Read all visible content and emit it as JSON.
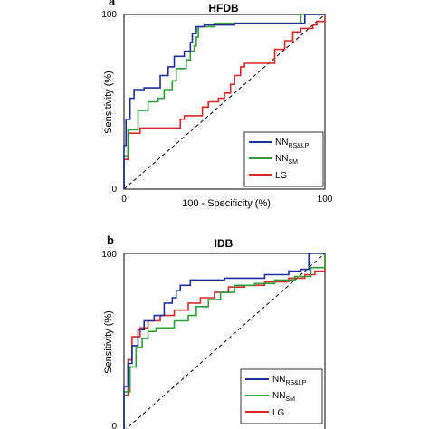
{
  "chart_data": [
    {
      "type": "line",
      "panel_label": "a",
      "title": "HFDB",
      "xlabel": "100 - Specificity (%)",
      "ylabel": "Sensitivity (%)",
      "xlim": [
        0,
        100
      ],
      "ylim": [
        0,
        100
      ],
      "x_ticks": [
        "0",
        "100"
      ],
      "y_ticks": [
        "0",
        "100"
      ],
      "legend_placement": "bottom-right",
      "reference_line": [
        [
          0,
          0
        ],
        [
          100,
          100
        ]
      ],
      "series": [
        {
          "name": "NN",
          "name_sub": "RS&LP",
          "color": "#1f2f9a",
          "points": [
            [
              0,
              0
            ],
            [
              0,
              25
            ],
            [
              1,
              25
            ],
            [
              1,
              40
            ],
            [
              3,
              40
            ],
            [
              3,
              52
            ],
            [
              5,
              52
            ],
            [
              5,
              57
            ],
            [
              10,
              57
            ],
            [
              10,
              58
            ],
            [
              18,
              58
            ],
            [
              18,
              65
            ],
            [
              22,
              65
            ],
            [
              22,
              70
            ],
            [
              25,
              70
            ],
            [
              25,
              76
            ],
            [
              30,
              76
            ],
            [
              30,
              79
            ],
            [
              33,
              79
            ],
            [
              33,
              84
            ],
            [
              34,
              84
            ],
            [
              34,
              89
            ],
            [
              36,
              89
            ],
            [
              36,
              93
            ],
            [
              40,
              93
            ],
            [
              40,
              94
            ],
            [
              55,
              94
            ],
            [
              55,
              95
            ],
            [
              90,
              95
            ],
            [
              90,
              100
            ],
            [
              100,
              100
            ]
          ]
        },
        {
          "name": "NN",
          "name_sub": "SM",
          "color": "#2e9e3a",
          "points": [
            [
              0,
              0
            ],
            [
              0,
              19
            ],
            [
              2,
              19
            ],
            [
              2,
              34
            ],
            [
              7,
              34
            ],
            [
              7,
              45
            ],
            [
              12,
              45
            ],
            [
              12,
              50
            ],
            [
              17,
              50
            ],
            [
              17,
              52
            ],
            [
              20,
              52
            ],
            [
              20,
              57
            ],
            [
              24,
              57
            ],
            [
              24,
              62
            ],
            [
              26,
              62
            ],
            [
              26,
              69
            ],
            [
              31,
              69
            ],
            [
              31,
              74
            ],
            [
              33,
              74
            ],
            [
              33,
              79
            ],
            [
              35,
              79
            ],
            [
              35,
              82
            ],
            [
              36,
              82
            ],
            [
              36,
              87
            ],
            [
              37,
              87
            ],
            [
              37,
              93
            ],
            [
              45,
              93
            ],
            [
              45,
              95
            ],
            [
              88,
              95
            ],
            [
              88,
              100
            ],
            [
              100,
              100
            ]
          ]
        },
        {
          "name": "LG",
          "name_sub": "",
          "color": "#d42a2a",
          "points": [
            [
              0,
              0
            ],
            [
              0,
              17
            ],
            [
              2,
              17
            ],
            [
              2,
              32
            ],
            [
              8,
              32
            ],
            [
              8,
              35
            ],
            [
              28,
              35
            ],
            [
              28,
              40
            ],
            [
              30,
              40
            ],
            [
              30,
              42
            ],
            [
              39,
              42
            ],
            [
              39,
              47
            ],
            [
              42,
              47
            ],
            [
              42,
              50
            ],
            [
              47,
              50
            ],
            [
              47,
              52
            ],
            [
              50,
              52
            ],
            [
              50,
              55
            ],
            [
              53,
              55
            ],
            [
              53,
              60
            ],
            [
              55,
              60
            ],
            [
              55,
              65
            ],
            [
              58,
              65
            ],
            [
              58,
              70
            ],
            [
              60,
              70
            ],
            [
              60,
              72
            ],
            [
              75,
              72
            ],
            [
              75,
              80
            ],
            [
              80,
              80
            ],
            [
              80,
              85
            ],
            [
              84,
              85
            ],
            [
              84,
              90
            ],
            [
              88,
              90
            ],
            [
              88,
              92
            ],
            [
              94,
              92
            ],
            [
              94,
              94
            ],
            [
              96,
              94
            ],
            [
              96,
              96
            ],
            [
              100,
              96
            ],
            [
              100,
              100
            ]
          ]
        }
      ]
    },
    {
      "type": "line",
      "panel_label": "b",
      "title": "IDB",
      "xlabel": "",
      "ylabel": "Sensitivity (%)",
      "xlim": [
        0,
        100
      ],
      "ylim": [
        0,
        100
      ],
      "x_ticks": [],
      "y_ticks": [
        "0",
        "100"
      ],
      "legend_placement": "bottom-right",
      "reference_line": [
        [
          0,
          0
        ],
        [
          100,
          100
        ]
      ],
      "series": [
        {
          "name": "NN",
          "name_sub": "RS&LP",
          "color": "#1f2f9a",
          "points": [
            [
              0,
              0
            ],
            [
              0,
              25
            ],
            [
              2,
              25
            ],
            [
              2,
              38
            ],
            [
              4,
              38
            ],
            [
              4,
              48
            ],
            [
              7,
              48
            ],
            [
              7,
              57
            ],
            [
              10,
              57
            ],
            [
              10,
              62
            ],
            [
              15,
              62
            ],
            [
              15,
              65
            ],
            [
              20,
              65
            ],
            [
              20,
              72
            ],
            [
              24,
              72
            ],
            [
              24,
              75
            ],
            [
              26,
              75
            ],
            [
              26,
              79
            ],
            [
              28,
              79
            ],
            [
              28,
              82
            ],
            [
              33,
              82
            ],
            [
              33,
              85
            ],
            [
              50,
              85
            ],
            [
              50,
              86
            ],
            [
              70,
              86
            ],
            [
              70,
              88
            ],
            [
              82,
              88
            ],
            [
              82,
              90
            ],
            [
              88,
              90
            ],
            [
              88,
              91
            ],
            [
              92,
              91
            ],
            [
              92,
              100
            ],
            [
              100,
              100
            ]
          ]
        },
        {
          "name": "NN",
          "name_sub": "SM",
          "color": "#2e9e3a",
          "points": [
            [
              0,
              0
            ],
            [
              0,
              22
            ],
            [
              3,
              22
            ],
            [
              3,
              36
            ],
            [
              6,
              36
            ],
            [
              6,
              47
            ],
            [
              9,
              47
            ],
            [
              9,
              52
            ],
            [
              12,
              52
            ],
            [
              12,
              56
            ],
            [
              16,
              56
            ],
            [
              16,
              58
            ],
            [
              25,
              58
            ],
            [
              25,
              62
            ],
            [
              32,
              62
            ],
            [
              32,
              65
            ],
            [
              36,
              65
            ],
            [
              36,
              70
            ],
            [
              42,
              70
            ],
            [
              42,
              74
            ],
            [
              48,
              74
            ],
            [
              48,
              78
            ],
            [
              55,
              78
            ],
            [
              55,
              82
            ],
            [
              65,
              82
            ],
            [
              65,
              83
            ],
            [
              75,
              83
            ],
            [
              75,
              85
            ],
            [
              85,
              85
            ],
            [
              85,
              87
            ],
            [
              93,
              87
            ],
            [
              93,
              92
            ],
            [
              100,
              92
            ],
            [
              100,
              100
            ]
          ]
        },
        {
          "name": "LG",
          "name_sub": "",
          "color": "#d42a2a",
          "points": [
            [
              0,
              0
            ],
            [
              0,
              20
            ],
            [
              2,
              20
            ],
            [
              2,
              40
            ],
            [
              4,
              40
            ],
            [
              4,
              53
            ],
            [
              8,
              53
            ],
            [
              8,
              58
            ],
            [
              12,
              58
            ],
            [
              12,
              62
            ],
            [
              18,
              62
            ],
            [
              18,
              65
            ],
            [
              25,
              65
            ],
            [
              25,
              68
            ],
            [
              32,
              68
            ],
            [
              32,
              72
            ],
            [
              38,
              72
            ],
            [
              38,
              75
            ],
            [
              45,
              75
            ],
            [
              45,
              78
            ],
            [
              52,
              78
            ],
            [
              52,
              81
            ],
            [
              60,
              81
            ],
            [
              60,
              82
            ],
            [
              70,
              82
            ],
            [
              70,
              84
            ],
            [
              82,
              84
            ],
            [
              82,
              86
            ],
            [
              90,
              86
            ],
            [
              90,
              88
            ],
            [
              95,
              88
            ],
            [
              95,
              90
            ],
            [
              100,
              90
            ],
            [
              100,
              100
            ]
          ]
        }
      ]
    }
  ]
}
